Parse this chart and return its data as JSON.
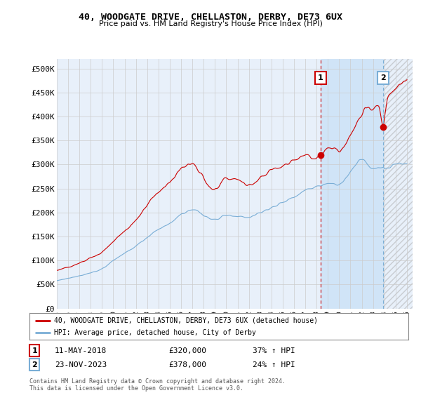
{
  "title": "40, WOODGATE DRIVE, CHELLASTON, DERBY, DE73 6UX",
  "subtitle": "Price paid vs. HM Land Registry's House Price Index (HPI)",
  "ylabel_ticks": [
    "£0",
    "£50K",
    "£100K",
    "£150K",
    "£200K",
    "£250K",
    "£300K",
    "£350K",
    "£400K",
    "£450K",
    "£500K"
  ],
  "ytick_vals": [
    0,
    50000,
    100000,
    150000,
    200000,
    250000,
    300000,
    350000,
    400000,
    450000,
    500000
  ],
  "ylim": [
    0,
    520000
  ],
  "xlim_start": 1995.0,
  "xlim_end": 2026.5,
  "xticks": [
    1995,
    1996,
    1997,
    1998,
    1999,
    2000,
    2001,
    2002,
    2003,
    2004,
    2005,
    2006,
    2007,
    2008,
    2009,
    2010,
    2011,
    2012,
    2013,
    2014,
    2015,
    2016,
    2017,
    2018,
    2019,
    2020,
    2021,
    2022,
    2023,
    2024,
    2025,
    2026
  ],
  "sale1_x": 2018.36,
  "sale1_y": 320000,
  "sale1_label": "1",
  "sale1_date": "11-MAY-2018",
  "sale1_price": "£320,000",
  "sale1_hpi": "37% ↑ HPI",
  "sale2_x": 2023.9,
  "sale2_y": 378000,
  "sale2_label": "2",
  "sale2_date": "23-NOV-2023",
  "sale2_price": "£378,000",
  "sale2_hpi": "24% ↑ HPI",
  "line1_color": "#cc0000",
  "line2_color": "#7aaed6",
  "grid_color": "#cccccc",
  "background_color": "#e8f0fa",
  "highlight_color": "#d0e4f7",
  "sale_marker_color": "#cc0000",
  "legend1_label": "40, WOODGATE DRIVE, CHELLASTON, DERBY, DE73 6UX (detached house)",
  "legend2_label": "HPI: Average price, detached house, City of Derby",
  "footer": "Contains HM Land Registry data © Crown copyright and database right 2024.\nThis data is licensed under the Open Government Licence v3.0."
}
